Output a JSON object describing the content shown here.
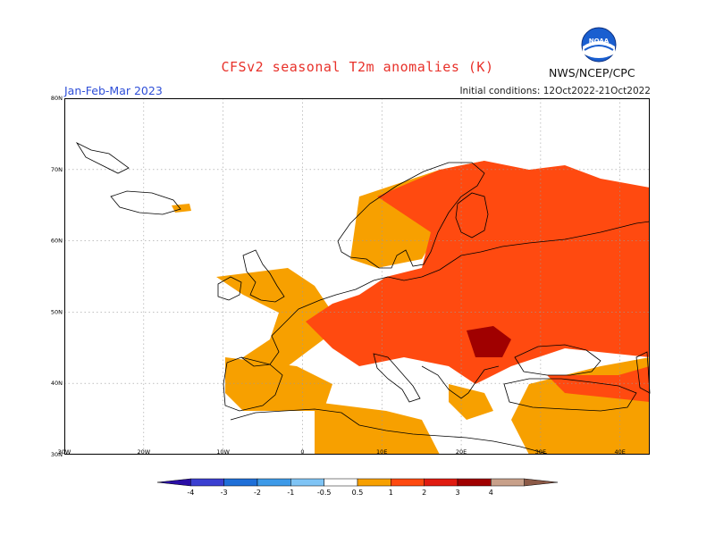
{
  "header": {
    "title": "CFSv2 seasonal T2m anomalies (K)",
    "period": "Jan-Feb-Mar 2023",
    "initial_conditions": "Initial conditions: 12Oct2022-21Oct2022",
    "agency": "NWS/NCEP/CPC",
    "logo_text": "NOAA"
  },
  "map": {
    "lat_labels": [
      "80N",
      "70N",
      "60N",
      "50N",
      "40N",
      "30N"
    ],
    "lon_labels": [
      "30W",
      "20W",
      "10W",
      "0",
      "10E",
      "20E",
      "30E",
      "40E"
    ],
    "lon_range": [
      -30,
      45
    ],
    "lat_range": [
      30,
      80
    ]
  },
  "legend": {
    "ticks": [
      "-4",
      "-3",
      "-2",
      "-1",
      "-0.5",
      "0.5",
      "1",
      "2",
      "3",
      "4"
    ],
    "colors": [
      "#2a0ea6",
      "#3b3fd1",
      "#1f6fd8",
      "#3d9ae8",
      "#7fc4f5",
      "#ffffff",
      "#f7a000",
      "#ff4a10",
      "#e01b10",
      "#a00000",
      "#c8a08a",
      "#8c5a47"
    ]
  },
  "colors": {
    "orange": "#f7a000",
    "red": "#ff4a10",
    "dark_red": "#a00000",
    "grid": "#9a9a9a",
    "coast": "#000000"
  }
}
